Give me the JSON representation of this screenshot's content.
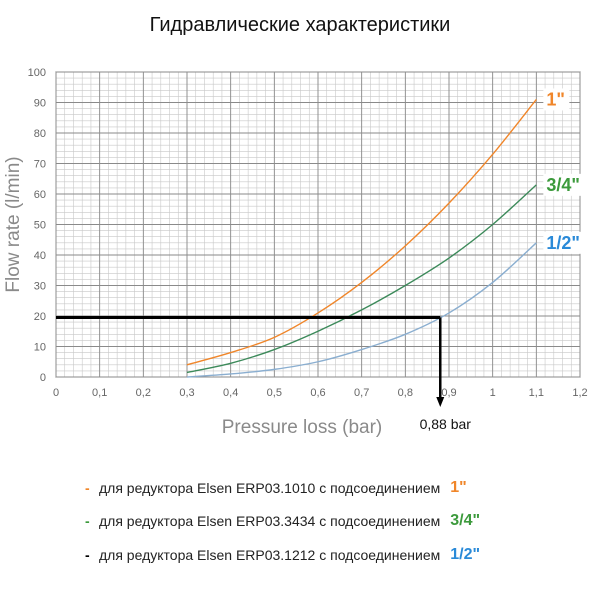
{
  "title": "Гидравлические характеристики",
  "chart_data": {
    "type": "line",
    "xlabel": "Pressure loss (bar)",
    "ylabel": "Flow rate (l/min)",
    "xlim": [
      0,
      1.2
    ],
    "ylim": [
      0,
      100
    ],
    "x_ticks": [
      "0",
      "0,1",
      "0,2",
      "0,3",
      "0,4",
      "0,5",
      "0,6",
      "0,7",
      "0,8",
      "0,9",
      "1",
      "1,1",
      "1,2"
    ],
    "y_ticks": [
      "0",
      "10",
      "20",
      "30",
      "40",
      "50",
      "60",
      "70",
      "80",
      "90",
      "100"
    ],
    "grid": true,
    "series": [
      {
        "name": "1\"",
        "color": "#f0862a",
        "x": [
          0.3,
          0.4,
          0.5,
          0.6,
          0.7,
          0.8,
          0.9,
          1.0,
          1.1
        ],
        "y": [
          4,
          8,
          13,
          21,
          31,
          43,
          57,
          73,
          91
        ]
      },
      {
        "name": "3/4\"",
        "color": "#3c8a5a",
        "x": [
          0.3,
          0.4,
          0.5,
          0.6,
          0.7,
          0.8,
          0.9,
          1.0,
          1.1
        ],
        "y": [
          1.5,
          4.5,
          9,
          15,
          22,
          30,
          39,
          50,
          63
        ]
      },
      {
        "name": "1/2\"",
        "color": "#8aaed0",
        "x": [
          0.3,
          0.4,
          0.5,
          0.6,
          0.7,
          0.8,
          0.9,
          1.0,
          1.1
        ],
        "y": [
          0,
          1,
          2.5,
          5,
          9,
          14,
          21,
          31,
          44
        ]
      }
    ],
    "annotation": {
      "flow": 19.5,
      "pressure": 0.88,
      "label": "0,88 bar",
      "color": "#000000"
    }
  },
  "legend": [
    {
      "dash": "-",
      "text": "для редуктора Elsen ERP03.1010 с подсоединением",
      "size": "1\"",
      "dash_color": "#f0862a",
      "size_color": "#f0862a"
    },
    {
      "dash": "-",
      "text": "для редуктора Elsen ERP03.3434 с подсоединением",
      "size": "3/4\"",
      "dash_color": "#3c9a3c",
      "size_color": "#3c9a3c"
    },
    {
      "dash": "-",
      "text": "для редуктора Elsen ERP03.1212 с подсоединением",
      "size": "1/2\"",
      "dash_color": "#000000",
      "size_color": "#2a8ad8"
    }
  ],
  "series_label_colors": [
    "#f0862a",
    "#3c9a3c",
    "#2a8ad8"
  ]
}
